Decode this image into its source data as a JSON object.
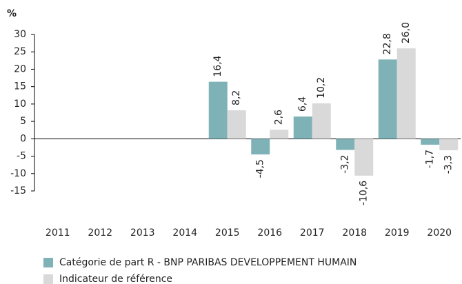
{
  "chart_data": {
    "type": "bar",
    "y_label": "%",
    "categories": [
      "2011",
      "2012",
      "2013",
      "2014",
      "2015",
      "2016",
      "2017",
      "2018",
      "2019",
      "2020"
    ],
    "series": [
      {
        "name": "Catégorie de part R - BNP PARIBAS DEVELOPPEMENT HUMAIN",
        "color": "#7fb2b7",
        "values": [
          null,
          null,
          null,
          null,
          16.4,
          -4.5,
          6.4,
          -3.2,
          22.8,
          -1.7
        ],
        "value_labels": [
          null,
          null,
          null,
          null,
          "16,4",
          "-4,5",
          "6,4",
          "-3,2",
          "22,8",
          "-1,7"
        ]
      },
      {
        "name": "Indicateur de référence",
        "color": "#d9d9d9",
        "values": [
          null,
          null,
          null,
          null,
          8.2,
          2.6,
          10.2,
          -10.6,
          26.0,
          -3.3
        ],
        "value_labels": [
          null,
          null,
          null,
          null,
          "8,2",
          "2,6",
          "10,2",
          "-10,6",
          "26,0",
          "-3,3"
        ]
      }
    ],
    "ylim": [
      -15,
      30
    ],
    "yticks": [
      -15,
      -10,
      -5,
      0,
      5,
      10,
      15,
      20,
      25,
      30
    ]
  }
}
